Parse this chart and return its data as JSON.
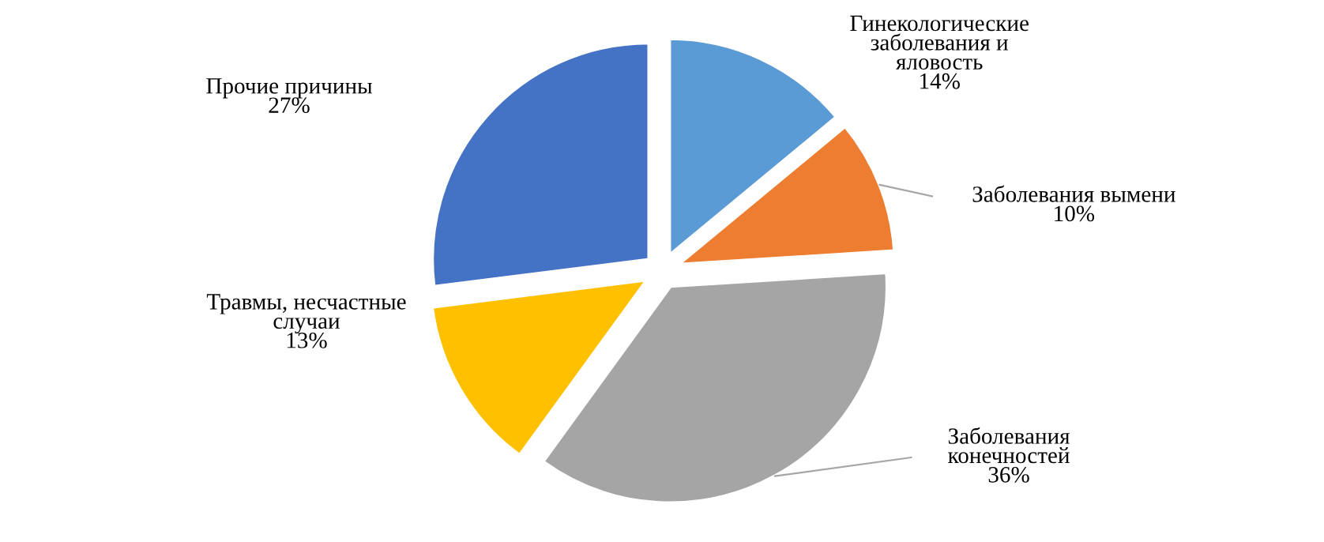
{
  "chart_data": {
    "type": "pie",
    "categories": [
      "Гинекологические заболевания и яловость",
      "Заболевания вымени",
      "Заболевания конечностей",
      "Травмы, несчастные случаи",
      "Прочие причины"
    ],
    "values": [
      14,
      10,
      36,
      13,
      27
    ],
    "colors": [
      "#5b9bd5",
      "#ed7d31",
      "#a5a5a5",
      "#ffc000",
      "#4472c4"
    ],
    "value_labels": [
      "14%",
      "10%",
      "36%",
      "13%",
      "27%"
    ],
    "legend": false
  }
}
